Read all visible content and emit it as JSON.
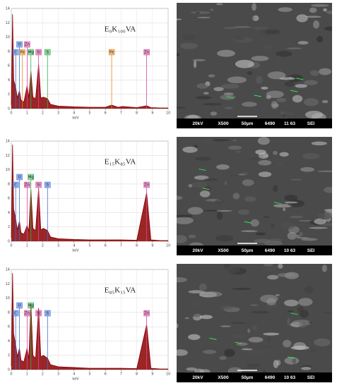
{
  "chart_data": [
    {
      "type": "line",
      "title": "E₀K₁₀₀VA",
      "xlabel": "keV",
      "x": [
        0,
        0.08,
        0.15,
        0.28,
        0.38,
        0.52,
        0.62,
        0.8,
        1.01,
        1.12,
        1.25,
        1.38,
        1.55,
        1.74,
        1.88,
        2.05,
        2.31,
        2.5,
        3,
        4,
        5,
        6,
        6.4,
        6.8,
        7.1,
        8,
        8.63,
        8.9,
        9.5,
        10
      ],
      "values": [
        0.5,
        13.2,
        4,
        3,
        1.5,
        2.5,
        1.2,
        0.9,
        3.2,
        1.5,
        5.2,
        1.6,
        1.4,
        6.2,
        1.5,
        1.6,
        1.4,
        0.6,
        0.35,
        0.25,
        0.2,
        0.2,
        0.5,
        0.2,
        0.3,
        0.15,
        0.4,
        0.15,
        0.1,
        0.1
      ],
      "color": "#8b0000",
      "xlim": [
        0,
        10
      ],
      "xticks": [
        0,
        1,
        2,
        3,
        4,
        5,
        6,
        7,
        8,
        9,
        10
      ],
      "ylim": [
        0,
        14
      ],
      "yticks": [
        0,
        2,
        4,
        6,
        8,
        10,
        12,
        14
      ],
      "grid": true,
      "annotations": [
        {
          "label": "C",
          "x": 0.28,
          "color": "#3a6fd8"
        },
        {
          "label": "O",
          "x": 0.52,
          "color": "#3a6fd8"
        },
        {
          "label": "Fe",
          "x": 0.71,
          "color": "#e08a1e"
        },
        {
          "label": "Zn",
          "x": 1.01,
          "color": "#d6459a"
        },
        {
          "label": "Mg",
          "x": 1.25,
          "color": "#2db34a"
        },
        {
          "label": "Si",
          "x": 1.74,
          "color": "#d6459a"
        },
        {
          "label": "S",
          "x": 2.31,
          "color": "#2db34a"
        },
        {
          "label": "Fe",
          "x": 6.4,
          "color": "#e08a1e"
        },
        {
          "label": "Zn",
          "x": 8.63,
          "color": "#d6459a"
        }
      ]
    },
    {
      "type": "line",
      "title": "E₁₅K₈₅VA",
      "xlabel": "keV",
      "x": [
        0,
        0.08,
        0.15,
        0.28,
        0.38,
        0.52,
        0.62,
        0.8,
        1.01,
        1.12,
        1.25,
        1.38,
        1.55,
        1.74,
        1.88,
        2.05,
        2.31,
        2.5,
        3,
        4,
        5,
        6,
        7,
        8,
        8.63,
        8.9,
        9.5,
        10
      ],
      "values": [
        0.5,
        13.5,
        4.5,
        3.2,
        1.6,
        2.8,
        1.2,
        1,
        2.2,
        1.4,
        7.2,
        1.8,
        1.5,
        7.4,
        1.6,
        1.8,
        1.5,
        0.6,
        0.35,
        0.25,
        0.2,
        0.2,
        0.2,
        0.15,
        6.8,
        0.2,
        0.1,
        0.1
      ],
      "color": "#8b0000",
      "xlim": [
        0,
        10
      ],
      "xticks": [
        0,
        1,
        2,
        3,
        4,
        5,
        6,
        7,
        8,
        9,
        10
      ],
      "ylim": [
        0,
        14
      ],
      "yticks": [
        0,
        2,
        4,
        6,
        8,
        10,
        12,
        14
      ],
      "grid": true,
      "annotations": [
        {
          "label": "C",
          "x": 0.28,
          "color": "#3a6fd8"
        },
        {
          "label": "O",
          "x": 0.52,
          "color": "#3a6fd8"
        },
        {
          "label": "Zn",
          "x": 1.01,
          "color": "#d6459a"
        },
        {
          "label": "Mg",
          "x": 1.25,
          "color": "#2db34a"
        },
        {
          "label": "Si",
          "x": 1.74,
          "color": "#d6459a"
        },
        {
          "label": "S",
          "x": 2.31,
          "color": "#3a6fd8"
        },
        {
          "label": "Zn",
          "x": 8.63,
          "color": "#d6459a"
        }
      ]
    },
    {
      "type": "line",
      "title": "E₈₅K₁₅VA",
      "xlabel": "keV",
      "x": [
        0,
        0.08,
        0.15,
        0.28,
        0.38,
        0.52,
        0.62,
        0.8,
        1.01,
        1.12,
        1.25,
        1.38,
        1.55,
        1.74,
        1.88,
        2.05,
        2.31,
        2.5,
        3,
        4,
        5,
        6,
        7,
        8,
        8.63,
        8.9,
        9.5,
        10
      ],
      "values": [
        0.5,
        13.5,
        5,
        3.5,
        1.8,
        3,
        1.3,
        1.1,
        3,
        1.5,
        9.2,
        2,
        1.6,
        8.6,
        1.8,
        2,
        1.6,
        0.7,
        0.4,
        0.3,
        0.2,
        0.2,
        0.2,
        0.15,
        6.3,
        0.2,
        0.1,
        0.1
      ],
      "color": "#8b0000",
      "xlim": [
        0,
        10
      ],
      "xticks": [
        0,
        1,
        2,
        3,
        4,
        5,
        6,
        7,
        8,
        9,
        10
      ],
      "ylim": [
        0,
        14
      ],
      "yticks": [
        0,
        2,
        4,
        6,
        8,
        10,
        12,
        14
      ],
      "grid": true,
      "annotations": [
        {
          "label": "C",
          "x": 0.28,
          "color": "#3a6fd8"
        },
        {
          "label": "O",
          "x": 0.52,
          "color": "#3a6fd8"
        },
        {
          "label": "Zn",
          "x": 1.01,
          "color": "#d6459a"
        },
        {
          "label": "Mg",
          "x": 1.25,
          "color": "#2db34a"
        },
        {
          "label": "Si",
          "x": 1.74,
          "color": "#d6459a"
        },
        {
          "label": "S",
          "x": 2.31,
          "color": "#3a6fd8"
        },
        {
          "label": "Zn",
          "x": 8.63,
          "color": "#d6459a"
        }
      ]
    }
  ],
  "images": [
    {
      "caption": [
        "20kV",
        "X500",
        "50µm",
        "6490",
        "11 63",
        "SEI"
      ]
    },
    {
      "caption": [
        "20kV",
        "X500",
        "50µm",
        "6490",
        "10 63",
        "SEI"
      ]
    },
    {
      "caption": [
        "20kV",
        "X500",
        "50µm",
        "6490",
        "10 63",
        "SEI"
      ]
    }
  ]
}
